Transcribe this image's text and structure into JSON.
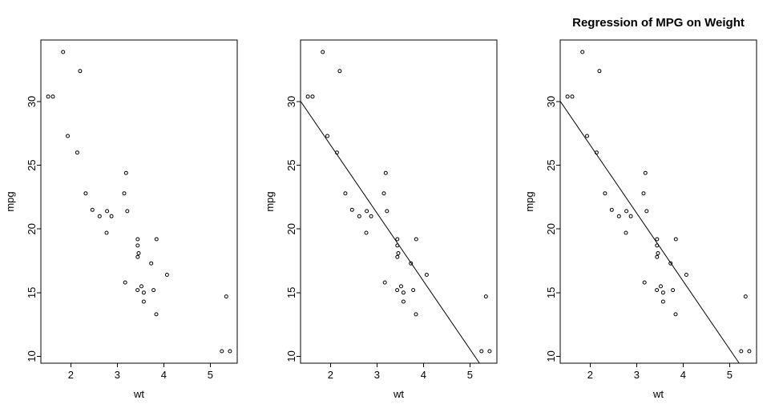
{
  "colors": {
    "foreground": "#000000",
    "background": "#ffffff"
  },
  "chart_data": [
    {
      "type": "scatter",
      "title": "",
      "xlabel": "wt",
      "ylabel": "mpg",
      "xlim": [
        1.3566,
        5.5804
      ],
      "ylim": [
        9.46,
        34.84
      ],
      "x_ticks": [
        2,
        3,
        4,
        5
      ],
      "y_ticks": [
        10,
        15,
        20,
        25,
        30
      ],
      "grid": false,
      "marker": "open-circle",
      "points": [
        [
          2.62,
          21.0
        ],
        [
          2.875,
          21.0
        ],
        [
          2.32,
          22.8
        ],
        [
          3.215,
          21.4
        ],
        [
          3.44,
          18.7
        ],
        [
          3.46,
          18.1
        ],
        [
          3.57,
          14.3
        ],
        [
          3.19,
          24.4
        ],
        [
          3.15,
          22.8
        ],
        [
          3.44,
          19.2
        ],
        [
          3.44,
          17.8
        ],
        [
          4.07,
          16.4
        ],
        [
          3.73,
          17.3
        ],
        [
          3.78,
          15.2
        ],
        [
          5.25,
          10.4
        ],
        [
          5.424,
          10.4
        ],
        [
          5.345,
          14.7
        ],
        [
          2.2,
          32.4
        ],
        [
          1.615,
          30.4
        ],
        [
          1.835,
          33.9
        ],
        [
          2.465,
          21.5
        ],
        [
          3.52,
          15.5
        ],
        [
          3.435,
          15.2
        ],
        [
          3.84,
          13.3
        ],
        [
          3.845,
          19.2
        ],
        [
          1.935,
          27.3
        ],
        [
          2.14,
          26.0
        ],
        [
          1.513,
          30.4
        ],
        [
          3.17,
          15.8
        ],
        [
          2.77,
          19.7
        ],
        [
          3.57,
          15.0
        ],
        [
          2.78,
          21.4
        ]
      ],
      "regression_line": null
    },
    {
      "type": "scatter",
      "title": "",
      "xlabel": "wt",
      "ylabel": "mpg",
      "xlim": [
        1.3566,
        5.5804
      ],
      "ylim": [
        9.46,
        34.84
      ],
      "x_ticks": [
        2,
        3,
        4,
        5
      ],
      "y_ticks": [
        10,
        15,
        20,
        25,
        30
      ],
      "grid": false,
      "marker": "open-circle",
      "points": [
        [
          2.62,
          21.0
        ],
        [
          2.875,
          21.0
        ],
        [
          2.32,
          22.8
        ],
        [
          3.215,
          21.4
        ],
        [
          3.44,
          18.7
        ],
        [
          3.46,
          18.1
        ],
        [
          3.57,
          14.3
        ],
        [
          3.19,
          24.4
        ],
        [
          3.15,
          22.8
        ],
        [
          3.44,
          19.2
        ],
        [
          3.44,
          17.8
        ],
        [
          4.07,
          16.4
        ],
        [
          3.73,
          17.3
        ],
        [
          3.78,
          15.2
        ],
        [
          5.25,
          10.4
        ],
        [
          5.424,
          10.4
        ],
        [
          5.345,
          14.7
        ],
        [
          2.2,
          32.4
        ],
        [
          1.615,
          30.4
        ],
        [
          1.835,
          33.9
        ],
        [
          2.465,
          21.5
        ],
        [
          3.52,
          15.5
        ],
        [
          3.435,
          15.2
        ],
        [
          3.84,
          13.3
        ],
        [
          3.845,
          19.2
        ],
        [
          1.935,
          27.3
        ],
        [
          2.14,
          26.0
        ],
        [
          1.513,
          30.4
        ],
        [
          3.17,
          15.8
        ],
        [
          2.77,
          19.7
        ],
        [
          3.57,
          15.0
        ],
        [
          2.78,
          21.4
        ]
      ],
      "regression_line": {
        "intercept": 37.285,
        "slope": -5.344
      }
    },
    {
      "type": "scatter",
      "title": "Regression of MPG on Weight",
      "xlabel": "wt",
      "ylabel": "mpg",
      "xlim": [
        1.3566,
        5.5804
      ],
      "ylim": [
        9.46,
        34.84
      ],
      "x_ticks": [
        2,
        3,
        4,
        5
      ],
      "y_ticks": [
        10,
        15,
        20,
        25,
        30
      ],
      "grid": false,
      "marker": "open-circle",
      "points": [
        [
          2.62,
          21.0
        ],
        [
          2.875,
          21.0
        ],
        [
          2.32,
          22.8
        ],
        [
          3.215,
          21.4
        ],
        [
          3.44,
          18.7
        ],
        [
          3.46,
          18.1
        ],
        [
          3.57,
          14.3
        ],
        [
          3.19,
          24.4
        ],
        [
          3.15,
          22.8
        ],
        [
          3.44,
          19.2
        ],
        [
          3.44,
          17.8
        ],
        [
          4.07,
          16.4
        ],
        [
          3.73,
          17.3
        ],
        [
          3.78,
          15.2
        ],
        [
          5.25,
          10.4
        ],
        [
          5.424,
          10.4
        ],
        [
          5.345,
          14.7
        ],
        [
          2.2,
          32.4
        ],
        [
          1.615,
          30.4
        ],
        [
          1.835,
          33.9
        ],
        [
          2.465,
          21.5
        ],
        [
          3.52,
          15.5
        ],
        [
          3.435,
          15.2
        ],
        [
          3.84,
          13.3
        ],
        [
          3.845,
          19.2
        ],
        [
          1.935,
          27.3
        ],
        [
          2.14,
          26.0
        ],
        [
          1.513,
          30.4
        ],
        [
          3.17,
          15.8
        ],
        [
          2.77,
          19.7
        ],
        [
          3.57,
          15.0
        ],
        [
          2.78,
          21.4
        ]
      ],
      "regression_line": {
        "intercept": 37.285,
        "slope": -5.344
      }
    }
  ]
}
